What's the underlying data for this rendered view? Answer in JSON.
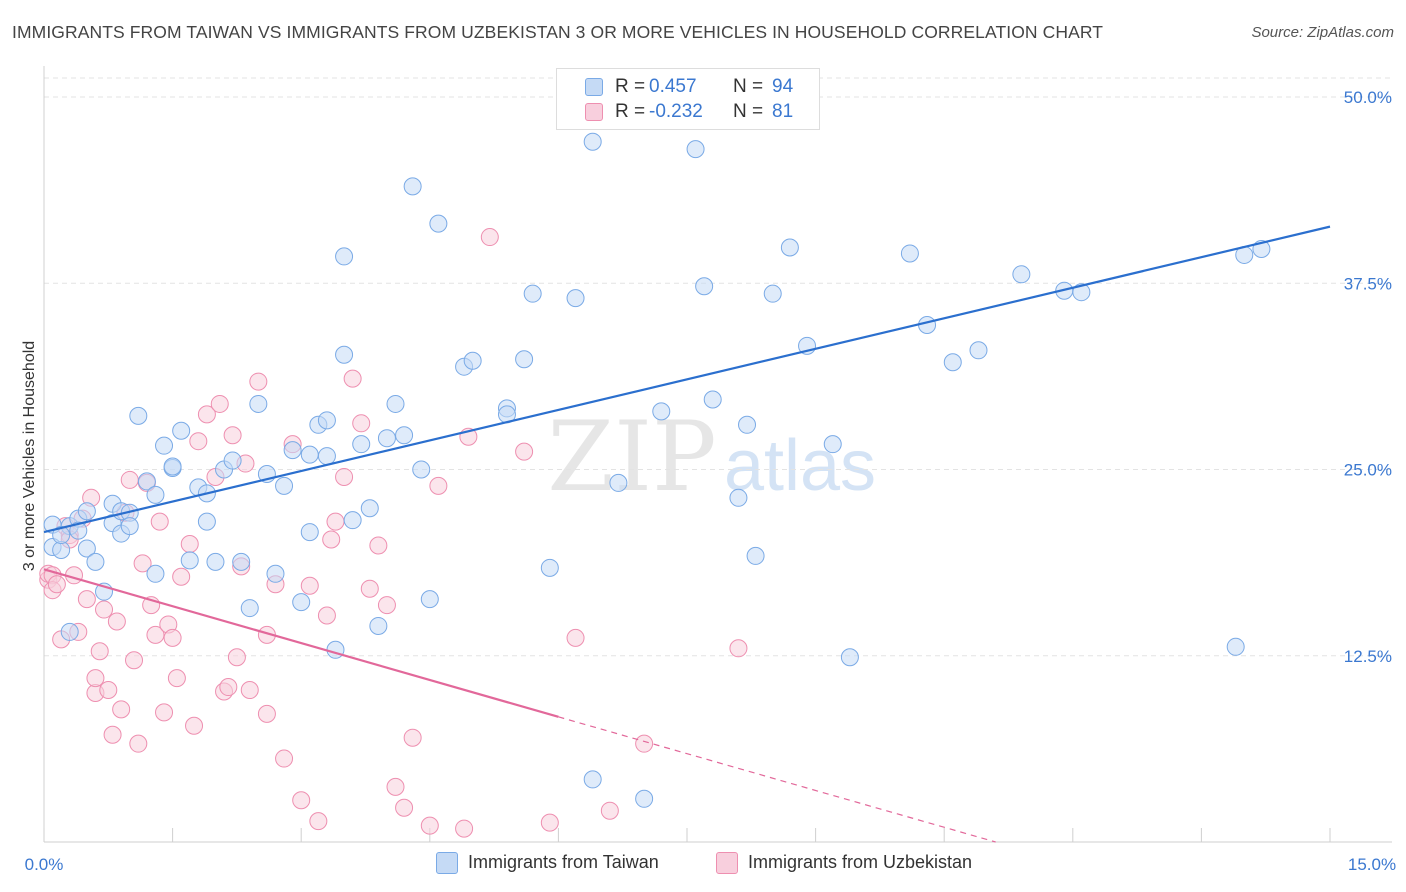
{
  "title": "IMMIGRANTS FROM TAIWAN VS IMMIGRANTS FROM UZBEKISTAN 3 OR MORE VEHICLES IN HOUSEHOLD CORRELATION CHART",
  "source": "Source: ZipAtlas.com",
  "watermark": {
    "zip": "ZIP",
    "atlas": "atlas"
  },
  "colors": {
    "taiwan": "#7aaae6",
    "taiwan_fill": "#c5daf5",
    "uzbekistan": "#ee8fb0",
    "uzbekistan_fill": "#f8cfdd",
    "taiwan_line": "#2b6fce",
    "uzbekistan_line": "#e2689a",
    "axis_text": "#3b78d0"
  },
  "legend_top": {
    "rows": [
      {
        "r_label": "R =",
        "r_value": "0.457",
        "n_label": "N =",
        "n_value": "94"
      },
      {
        "r_label": "R =",
        "r_value": "-0.232",
        "n_label": "N =",
        "n_value": "81"
      }
    ]
  },
  "legend_bottom": [
    "Immigrants from Taiwan",
    "Immigrants from Uzbekistan"
  ],
  "chart_data": {
    "type": "scatter",
    "title": "IMMIGRANTS FROM TAIWAN VS IMMIGRANTS FROM UZBEKISTAN 3 OR MORE VEHICLES IN HOUSEHOLD CORRELATION CHART",
    "xlabel": "",
    "ylabel": "3 or more Vehicles in Household",
    "xlim": [
      0,
      15
    ],
    "ylim": [
      0,
      50
    ],
    "x_tick_labels": [
      "0.0%",
      "15.0%"
    ],
    "y_ticks": [
      12.5,
      25.0,
      37.5,
      50.0
    ],
    "y_tick_labels": [
      "12.5%",
      "25.0%",
      "37.5%",
      "50.0%"
    ],
    "grid": true,
    "legend_position": "top-center",
    "series": [
      {
        "name": "Immigrants from Taiwan",
        "R": 0.457,
        "N": 94,
        "trend": {
          "x": [
            0,
            15
          ],
          "y": [
            20.8,
            41.3
          ]
        },
        "points": [
          [
            0.1,
            21.3
          ],
          [
            0.1,
            19.8
          ],
          [
            0.2,
            19.6
          ],
          [
            0.3,
            14.1
          ],
          [
            0.3,
            21.2
          ],
          [
            0.4,
            21.7
          ],
          [
            0.5,
            22.2
          ],
          [
            0.5,
            19.7
          ],
          [
            0.6,
            18.8
          ],
          [
            0.7,
            16.8
          ],
          [
            0.8,
            22.7
          ],
          [
            0.8,
            21.4
          ],
          [
            0.9,
            20.7
          ],
          [
            0.9,
            22.2
          ],
          [
            1.0,
            22.1
          ],
          [
            1.0,
            21.2
          ],
          [
            1.1,
            28.6
          ],
          [
            1.2,
            24.2
          ],
          [
            1.3,
            23.3
          ],
          [
            1.3,
            18.0
          ],
          [
            1.4,
            26.6
          ],
          [
            1.5,
            25.1
          ],
          [
            1.6,
            27.6
          ],
          [
            1.7,
            18.9
          ],
          [
            1.8,
            23.8
          ],
          [
            1.9,
            21.5
          ],
          [
            1.9,
            23.4
          ],
          [
            2.0,
            18.8
          ],
          [
            2.1,
            25.0
          ],
          [
            2.2,
            25.6
          ],
          [
            2.3,
            18.8
          ],
          [
            2.4,
            15.7
          ],
          [
            2.5,
            29.4
          ],
          [
            2.6,
            24.7
          ],
          [
            2.7,
            18.0
          ],
          [
            2.8,
            23.9
          ],
          [
            2.9,
            26.3
          ],
          [
            3.0,
            16.1
          ],
          [
            3.1,
            20.8
          ],
          [
            3.2,
            28.0
          ],
          [
            3.3,
            25.9
          ],
          [
            3.3,
            28.3
          ],
          [
            3.4,
            12.9
          ],
          [
            3.5,
            39.3
          ],
          [
            3.5,
            32.7
          ],
          [
            3.6,
            21.6
          ],
          [
            3.7,
            26.7
          ],
          [
            3.8,
            22.4
          ],
          [
            3.9,
            14.5
          ],
          [
            4.0,
            27.1
          ],
          [
            4.1,
            29.4
          ],
          [
            4.2,
            27.3
          ],
          [
            4.3,
            44.0
          ],
          [
            4.4,
            25.0
          ],
          [
            4.5,
            16.3
          ],
          [
            4.6,
            41.5
          ],
          [
            4.9,
            31.9
          ],
          [
            5.0,
            32.3
          ],
          [
            5.4,
            29.1
          ],
          [
            5.4,
            28.7
          ],
          [
            5.6,
            32.4
          ],
          [
            5.7,
            36.8
          ],
          [
            5.9,
            18.4
          ],
          [
            6.2,
            36.5
          ],
          [
            6.4,
            4.2
          ],
          [
            6.4,
            47.0
          ],
          [
            6.7,
            24.1
          ],
          [
            7.0,
            2.9
          ],
          [
            7.2,
            28.9
          ],
          [
            7.6,
            46.5
          ],
          [
            7.7,
            37.3
          ],
          [
            7.8,
            29.7
          ],
          [
            8.1,
            23.1
          ],
          [
            8.2,
            28.0
          ],
          [
            8.3,
            19.2
          ],
          [
            8.5,
            36.8
          ],
          [
            8.7,
            39.9
          ],
          [
            8.9,
            33.3
          ],
          [
            9.2,
            26.7
          ],
          [
            9.4,
            12.4
          ],
          [
            10.1,
            39.5
          ],
          [
            10.3,
            34.7
          ],
          [
            10.6,
            32.2
          ],
          [
            10.9,
            33.0
          ],
          [
            11.4,
            38.1
          ],
          [
            11.9,
            37.0
          ],
          [
            12.1,
            36.9
          ],
          [
            13.9,
            13.1
          ],
          [
            14.0,
            39.4
          ],
          [
            14.2,
            39.8
          ],
          [
            0.2,
            20.6
          ],
          [
            0.4,
            20.9
          ],
          [
            1.5,
            25.2
          ],
          [
            3.1,
            26.0
          ]
        ]
      },
      {
        "name": "Immigrants from Uzbekistan",
        "R": -0.232,
        "N": 81,
        "trend": {
          "x": [
            0,
            6.0
          ],
          "y": [
            18.3,
            8.4
          ]
        },
        "trend_dashed": {
          "x": [
            6.0,
            11.1
          ],
          "y": [
            8.4,
            0
          ]
        },
        "points": [
          [
            0.05,
            17.6
          ],
          [
            0.05,
            18.0
          ],
          [
            0.1,
            17.9
          ],
          [
            0.1,
            16.9
          ],
          [
            0.15,
            17.3
          ],
          [
            0.2,
            13.6
          ],
          [
            0.25,
            21.2
          ],
          [
            0.3,
            20.6
          ],
          [
            0.3,
            20.3
          ],
          [
            0.35,
            17.9
          ],
          [
            0.4,
            14.1
          ],
          [
            0.45,
            21.7
          ],
          [
            0.5,
            16.3
          ],
          [
            0.55,
            23.1
          ],
          [
            0.6,
            10.0
          ],
          [
            0.6,
            11.0
          ],
          [
            0.65,
            12.8
          ],
          [
            0.7,
            15.6
          ],
          [
            0.75,
            10.2
          ],
          [
            0.8,
            7.2
          ],
          [
            0.85,
            14.8
          ],
          [
            0.9,
            8.9
          ],
          [
            0.95,
            22.1
          ],
          [
            1.0,
            24.3
          ],
          [
            1.05,
            12.2
          ],
          [
            1.1,
            6.6
          ],
          [
            1.15,
            18.7
          ],
          [
            1.2,
            24.1
          ],
          [
            1.25,
            15.9
          ],
          [
            1.3,
            13.9
          ],
          [
            1.35,
            21.5
          ],
          [
            1.4,
            8.7
          ],
          [
            1.45,
            14.6
          ],
          [
            1.5,
            13.7
          ],
          [
            1.55,
            11.0
          ],
          [
            1.6,
            17.8
          ],
          [
            1.7,
            20.0
          ],
          [
            1.75,
            7.8
          ],
          [
            1.8,
            26.9
          ],
          [
            1.9,
            28.7
          ],
          [
            2.0,
            24.5
          ],
          [
            2.05,
            29.4
          ],
          [
            2.1,
            10.1
          ],
          [
            2.15,
            10.4
          ],
          [
            2.2,
            27.3
          ],
          [
            2.25,
            12.4
          ],
          [
            2.3,
            18.5
          ],
          [
            2.35,
            25.4
          ],
          [
            2.4,
            10.2
          ],
          [
            2.5,
            30.9
          ],
          [
            2.6,
            13.9
          ],
          [
            2.6,
            8.6
          ],
          [
            2.7,
            17.3
          ],
          [
            2.8,
            5.6
          ],
          [
            2.9,
            26.7
          ],
          [
            3.0,
            2.8
          ],
          [
            3.1,
            17.2
          ],
          [
            3.2,
            1.4
          ],
          [
            3.3,
            15.2
          ],
          [
            3.35,
            20.3
          ],
          [
            3.4,
            21.5
          ],
          [
            3.5,
            24.5
          ],
          [
            3.6,
            31.1
          ],
          [
            3.7,
            28.1
          ],
          [
            3.8,
            17.0
          ],
          [
            3.9,
            19.9
          ],
          [
            4.0,
            15.9
          ],
          [
            4.1,
            3.7
          ],
          [
            4.2,
            2.3
          ],
          [
            4.3,
            7.0
          ],
          [
            4.5,
            1.1
          ],
          [
            4.6,
            23.9
          ],
          [
            4.9,
            0.9
          ],
          [
            4.95,
            27.2
          ],
          [
            5.2,
            40.6
          ],
          [
            5.6,
            26.2
          ],
          [
            5.9,
            1.3
          ],
          [
            6.2,
            13.7
          ],
          [
            6.6,
            2.1
          ],
          [
            7.0,
            6.6
          ],
          [
            8.1,
            13.0
          ]
        ]
      }
    ]
  }
}
